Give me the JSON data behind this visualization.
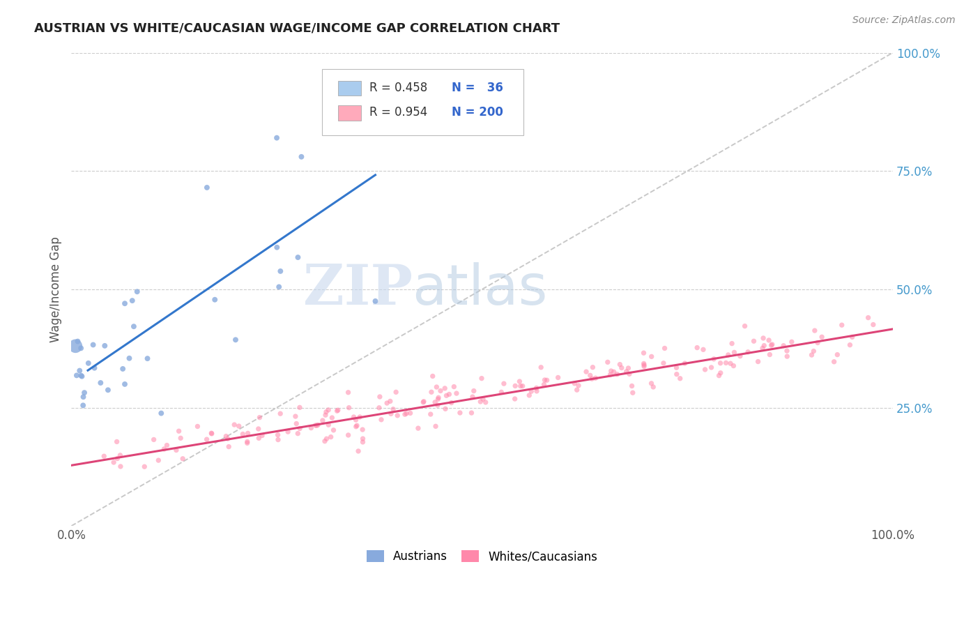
{
  "title": "AUSTRIAN VS WHITE/CAUCASIAN WAGE/INCOME GAP CORRELATION CHART",
  "source": "Source: ZipAtlas.com",
  "ylabel": "Wage/Income Gap",
  "watermark_zip": "ZIP",
  "watermark_atlas": "atlas",
  "background_color": "#ffffff",
  "blue_scatter_color": "#88AADD",
  "pink_scatter_color": "#FF88AA",
  "blue_line_color": "#3377CC",
  "pink_line_color": "#DD4477",
  "dashed_line_color": "#BBBBBB",
  "grid_color": "#CCCCCC",
  "ytick_color": "#4499CC",
  "xtick_color": "#555555",
  "legend_box_color": "#DDDDDD",
  "legend_text_color": "#333333",
  "legend_num_color": "#3366CC",
  "source_color": "#888888",
  "title_color": "#222222",
  "seed": 99
}
